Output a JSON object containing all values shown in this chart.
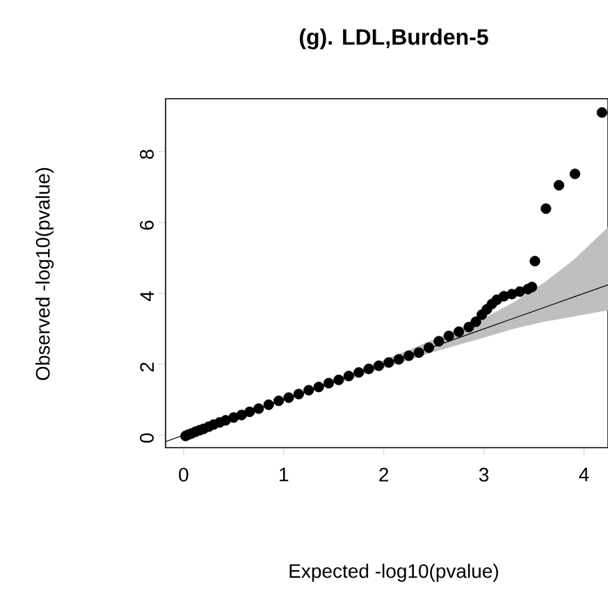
{
  "chart_data": {
    "type": "scatter",
    "title": "(g). LDL,Burden-5",
    "xlabel": "Expected -log10(pvalue)",
    "ylabel": "Observed -log10(pvalue)",
    "xlim": [
      -0.18,
      4.24
    ],
    "ylim": [
      -0.35,
      9.49
    ],
    "xticks": [
      0,
      1,
      2,
      3,
      4
    ],
    "yticks": [
      0,
      2,
      4,
      6,
      8
    ],
    "series": [
      {
        "type": "line",
        "marker": "none",
        "color": "#000000",
        "x": [
          -0.18,
          1,
          2,
          2.5,
          3,
          3.3,
          3.6,
          3.9,
          4.24
        ],
        "values": [
          -0.18,
          1,
          2,
          2.5,
          3,
          3.3,
          3.6,
          3.9,
          4.24
        ],
        "lower": [
          -0.18,
          0.98,
          1.9,
          2.35,
          2.75,
          3.0,
          3.2,
          3.35,
          3.52
        ],
        "upper": [
          -0.18,
          1.02,
          2.12,
          2.7,
          3.3,
          3.75,
          4.3,
          4.95,
          5.87
        ]
      },
      {
        "marker": "circle",
        "color": "#000000",
        "x": [
          0.02,
          0.05,
          0.08,
          0.12,
          0.16,
          0.2,
          0.25,
          0.3,
          0.36,
          0.42,
          0.5,
          0.58,
          0.66,
          0.75,
          0.85,
          0.95,
          1.05,
          1.15,
          1.25,
          1.35,
          1.45,
          1.55,
          1.65,
          1.75,
          1.85,
          1.95,
          2.05,
          2.15,
          2.25,
          2.35,
          2.45,
          2.55,
          2.65,
          2.75,
          2.85,
          2.92,
          2.98,
          3.03,
          3.08,
          3.13,
          3.2,
          3.28,
          3.36,
          3.44,
          3.48,
          3.51,
          3.62,
          3.75,
          3.91,
          4.18
        ],
        "values": [
          -0.02,
          0.02,
          0.05,
          0.1,
          0.14,
          0.18,
          0.24,
          0.3,
          0.36,
          0.42,
          0.5,
          0.57,
          0.66,
          0.75,
          0.86,
          0.97,
          1.06,
          1.16,
          1.27,
          1.36,
          1.47,
          1.56,
          1.67,
          1.77,
          1.87,
          1.96,
          2.05,
          2.14,
          2.24,
          2.33,
          2.47,
          2.65,
          2.8,
          2.92,
          3.05,
          3.2,
          3.4,
          3.55,
          3.7,
          3.82,
          3.92,
          3.98,
          4.05,
          4.12,
          4.18,
          4.91,
          6.39,
          7.05,
          7.37,
          9.1
        ]
      }
    ]
  }
}
